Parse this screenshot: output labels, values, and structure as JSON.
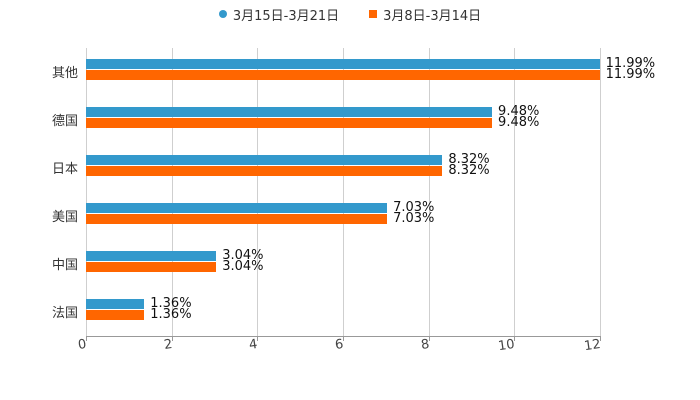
{
  "legend": [
    {
      "label": "3月15日-3月21日",
      "color": "#3399cc",
      "shape": "circle"
    },
    {
      "label": "3月8日-3月14日",
      "color": "#ff6600",
      "shape": "square"
    }
  ],
  "chart_data": {
    "type": "bar",
    "orientation": "horizontal",
    "categories": [
      "其他",
      "德国",
      "日本",
      "美国",
      "中国",
      "法国"
    ],
    "series": [
      {
        "name": "3月15日-3月21日",
        "color": "#3399cc",
        "values": [
          11.99,
          9.48,
          8.32,
          7.03,
          3.04,
          1.36
        ],
        "labels": [
          "11.99%",
          "9.48%",
          "8.32%",
          "7.03%",
          "3.04%",
          "1.36%"
        ]
      },
      {
        "name": "3月8日-3月14日",
        "color": "#ff6600",
        "values": [
          11.99,
          9.48,
          8.32,
          7.03,
          3.04,
          1.36
        ],
        "labels": [
          "11.99%",
          "9.48%",
          "8.32%",
          "7.03%",
          "3.04%",
          "1.36%"
        ]
      }
    ],
    "xticks": [
      "0",
      "2",
      "4",
      "6",
      "8",
      "10",
      "12"
    ],
    "xlim": [
      0,
      12
    ],
    "grid": true,
    "legend_position": "top",
    "title": "",
    "xlabel": "",
    "ylabel": ""
  }
}
